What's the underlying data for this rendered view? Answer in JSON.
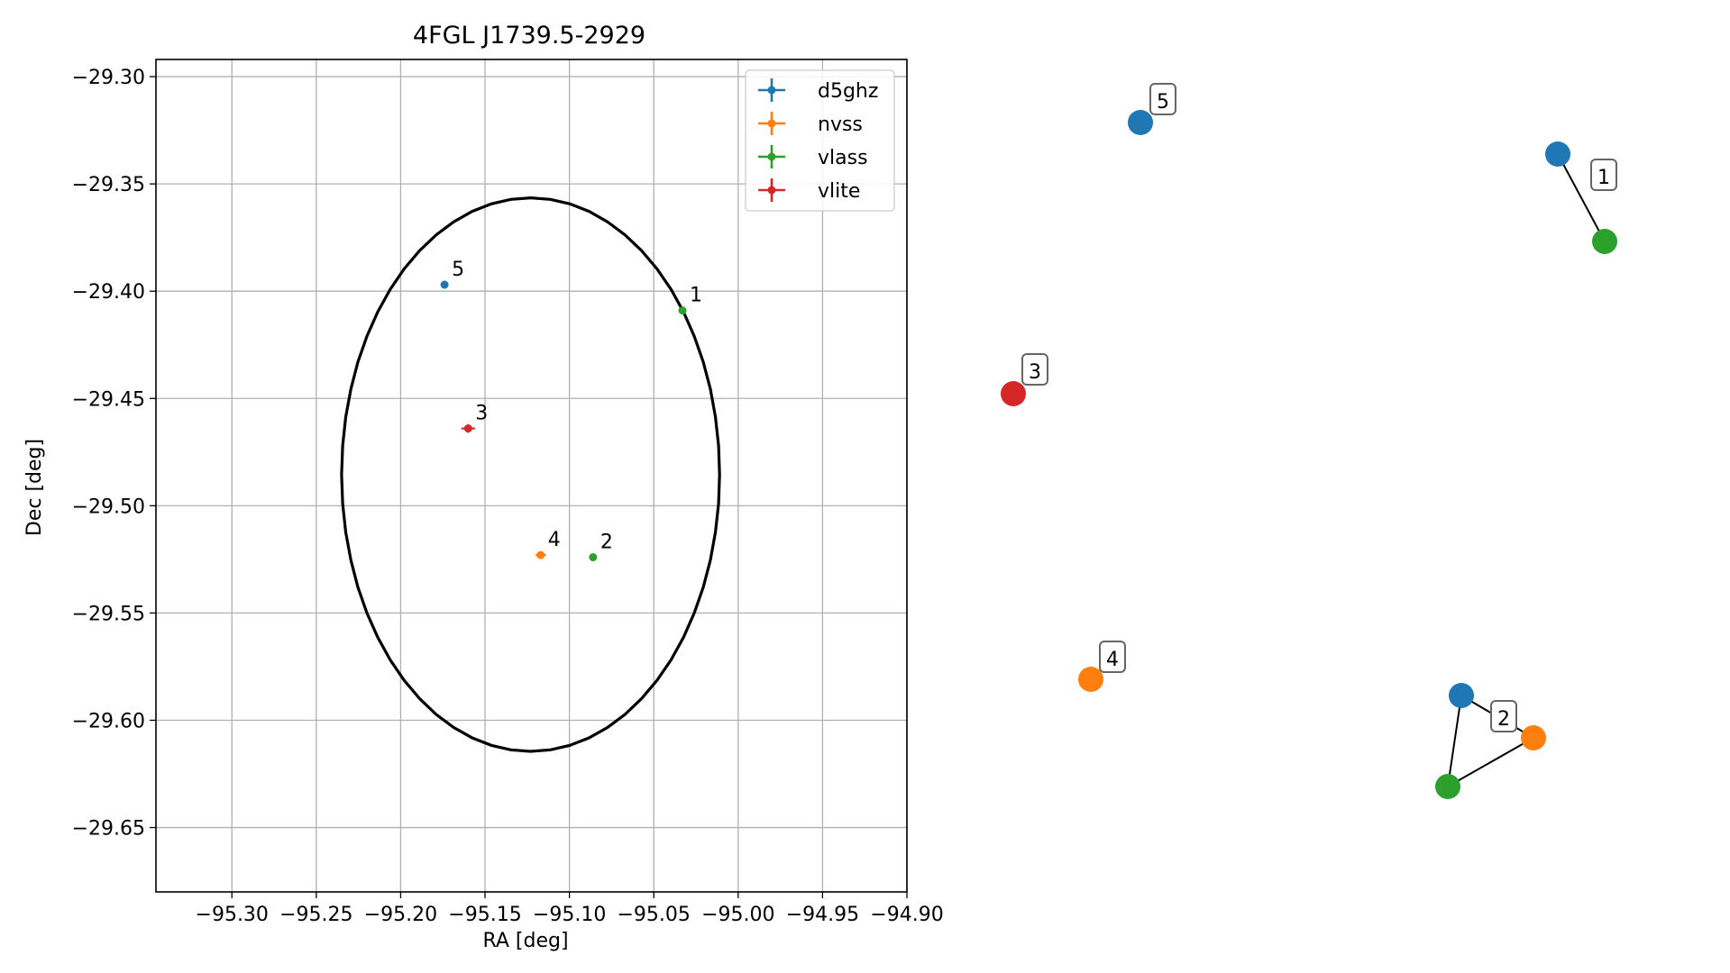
{
  "chart_data": [
    {
      "type": "scatter",
      "title": "4FGL J1739.5-2929",
      "xlabel": "RA [deg]",
      "ylabel": "Dec [deg]",
      "xlim": [
        -95.345,
        -94.9
      ],
      "ylim": [
        -29.68,
        -29.292
      ],
      "x_ticks": [
        -95.3,
        -95.25,
        -95.2,
        -95.15,
        -95.1,
        -95.05,
        -95.0,
        -94.95,
        -94.9
      ],
      "x_tick_labels": [
        "−95.30",
        "−95.25",
        "−95.20",
        "−95.15",
        "−95.10",
        "−95.05",
        "−95.00",
        "−94.95",
        "−94.90"
      ],
      "y_ticks": [
        -29.3,
        -29.35,
        -29.4,
        -29.45,
        -29.5,
        -29.55,
        -29.6,
        -29.65
      ],
      "y_tick_labels": [
        "−29.30",
        "−29.35",
        "−29.40",
        "−29.45",
        "−29.50",
        "−29.55",
        "−29.60",
        "−29.65"
      ],
      "grid": true,
      "legend_position": "top-right",
      "ellipse": {
        "center_x": -95.123,
        "center_y": -29.4855,
        "semi_axis_x": 0.112,
        "semi_axis_y": 0.129,
        "color": "#000000"
      },
      "series": [
        {
          "name": "d5ghz",
          "color": "#1f77b4",
          "points": [
            {
              "x": -95.174,
              "y": -29.397,
              "label": "5"
            }
          ]
        },
        {
          "name": "nvss",
          "color": "#ff7f0e",
          "points": [
            {
              "x": -95.117,
              "y": -29.523,
              "label": "4",
              "xerr": 0.003
            }
          ]
        },
        {
          "name": "vlass",
          "color": "#2ca02c",
          "points": [
            {
              "x": -95.033,
              "y": -29.409,
              "label": "1"
            },
            {
              "x": -95.086,
              "y": -29.524,
              "label": "2"
            }
          ]
        },
        {
          "name": "vlite",
          "color": "#d62728",
          "points": [
            {
              "x": -95.16,
              "y": -29.464,
              "label": "3",
              "xerr": 0.004,
              "yerr": 0.002
            }
          ]
        }
      ]
    },
    {
      "type": "network",
      "nodes": [
        {
          "id": "n5a",
          "color": "#1f77b4"
        },
        {
          "id": "n1a",
          "color": "#1f77b4"
        },
        {
          "id": "n1b",
          "color": "#2ca02c"
        },
        {
          "id": "n3a",
          "color": "#d62728"
        },
        {
          "id": "n4a",
          "color": "#ff7f0e"
        },
        {
          "id": "n2a",
          "color": "#1f77b4"
        },
        {
          "id": "n2b",
          "color": "#ff7f0e"
        },
        {
          "id": "n2c",
          "color": "#2ca02c"
        }
      ],
      "edges": [
        [
          "n1a",
          "n1b"
        ],
        [
          "n2a",
          "n2b"
        ],
        [
          "n2a",
          "n2c"
        ],
        [
          "n2b",
          "n2c"
        ]
      ],
      "group_labels": [
        "1",
        "2",
        "3",
        "4",
        "5"
      ]
    }
  ]
}
